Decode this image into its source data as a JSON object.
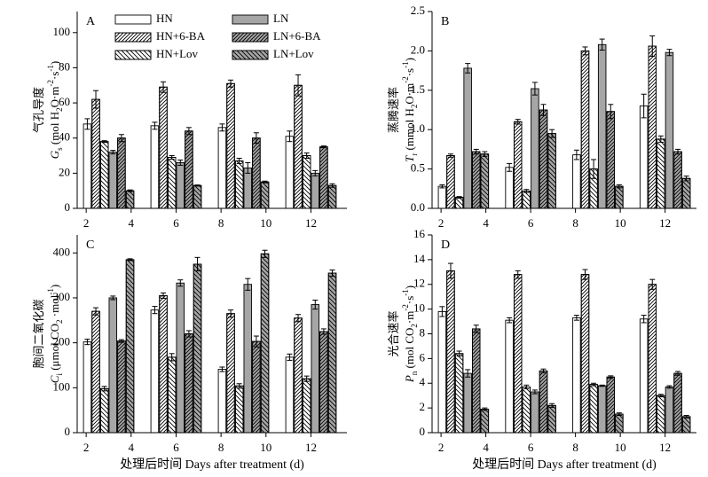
{
  "chart_data": [
    {
      "type": "bar",
      "panel": "A",
      "ylabel_cn": "气孔导度",
      "ylabel": [
        {
          "t": "G",
          "f": "italic"
        },
        {
          "t": "s",
          "f": "sub"
        },
        {
          "t": " (mol H",
          "f": "normal"
        },
        {
          "t": "2",
          "f": "sub"
        },
        {
          "t": "O·m",
          "f": "normal"
        },
        {
          "t": "-2",
          "f": "sup"
        },
        {
          "t": "·s",
          "f": "normal"
        },
        {
          "t": "-1",
          "f": "sup"
        },
        {
          "t": ")",
          "f": "normal"
        }
      ],
      "x": [
        3,
        6,
        9,
        12
      ],
      "xlim": [
        1.6,
        13.6
      ],
      "xticks": [
        2,
        4,
        6,
        8,
        10,
        12
      ],
      "ylim": [
        0,
        112
      ],
      "yticks": [
        0,
        20,
        40,
        60,
        80,
        100
      ],
      "series": [
        {
          "name": "HN",
          "color": "#ffffff",
          "pattern": "none",
          "values": [
            48,
            47,
            46,
            41
          ],
          "errors": [
            3,
            2,
            2,
            3
          ]
        },
        {
          "name": "HN+6-BA",
          "color": "#ffffff",
          "pattern": "slash",
          "values": [
            62,
            69,
            71,
            70
          ],
          "errors": [
            5,
            3,
            2,
            6
          ]
        },
        {
          "name": "HN+Lov",
          "color": "#ffffff",
          "pattern": "backslash",
          "values": [
            38,
            29,
            27,
            30
          ],
          "errors": [
            0.5,
            1,
            1.5,
            1.5
          ]
        },
        {
          "name": "LN",
          "color": "#a6a6a6",
          "pattern": "none",
          "values": [
            32,
            26,
            23,
            20
          ],
          "errors": [
            1,
            1.5,
            3,
            1.5
          ]
        },
        {
          "name": "LN+6-BA",
          "color": "#a6a6a6",
          "pattern": "slash",
          "values": [
            40,
            44,
            40,
            35
          ],
          "errors": [
            2,
            2,
            3,
            0.5
          ]
        },
        {
          "name": "LN+Lov",
          "color": "#a6a6a6",
          "pattern": "backslash",
          "values": [
            10,
            13,
            15,
            13
          ],
          "errors": [
            0.5,
            0.3,
            0.5,
            1
          ]
        }
      ]
    },
    {
      "type": "bar",
      "panel": "B",
      "ylabel_cn": "蒸腾速率",
      "ylabel": [
        {
          "t": "T",
          "f": "italic"
        },
        {
          "t": "r",
          "f": "sub"
        },
        {
          "t": " (mmol H",
          "f": "normal"
        },
        {
          "t": "2",
          "f": "sub"
        },
        {
          "t": "O·m",
          "f": "normal"
        },
        {
          "t": "-2",
          "f": "sup"
        },
        {
          "t": "·s",
          "f": "normal"
        },
        {
          "t": "-1",
          "f": "sup"
        },
        {
          "t": ")",
          "f": "normal"
        }
      ],
      "x": [
        3,
        6,
        9,
        12
      ],
      "xlim": [
        1.6,
        13.4
      ],
      "xticks": [
        2,
        4,
        6,
        8,
        10,
        12
      ],
      "ylim": [
        0,
        2.5
      ],
      "yticks": [
        {
          "value": 0,
          "label": "0.0"
        },
        0.5,
        {
          "value": 1,
          "label": "1.0"
        },
        1.5,
        {
          "value": 2,
          "label": "2.0"
        },
        2.5
      ],
      "series": [
        {
          "color": "#ffffff",
          "pattern": "none",
          "values": [
            0.28,
            0.52,
            0.68,
            1.3
          ],
          "errors": [
            0.02,
            0.05,
            0.06,
            0.15
          ]
        },
        {
          "color": "#ffffff",
          "pattern": "slash",
          "values": [
            0.67,
            1.1,
            2.0,
            2.06
          ],
          "errors": [
            0.02,
            0.03,
            0.05,
            0.13
          ]
        },
        {
          "color": "#ffffff",
          "pattern": "backslash",
          "values": [
            0.14,
            0.22,
            0.5,
            0.88
          ],
          "errors": [
            0.01,
            0.02,
            0.12,
            0.04
          ]
        },
        {
          "color": "#a6a6a6",
          "pattern": "none",
          "values": [
            1.78,
            1.52,
            2.08,
            1.98
          ],
          "errors": [
            0.06,
            0.08,
            0.07,
            0.04
          ]
        },
        {
          "color": "#a6a6a6",
          "pattern": "slash",
          "values": [
            0.72,
            1.25,
            1.23,
            0.72
          ],
          "errors": [
            0.03,
            0.07,
            0.09,
            0.03
          ]
        },
        {
          "color": "#a6a6a6",
          "pattern": "backslash",
          "values": [
            0.69,
            0.95,
            0.28,
            0.38
          ],
          "errors": [
            0.03,
            0.05,
            0.02,
            0.03
          ]
        }
      ]
    },
    {
      "type": "bar",
      "panel": "C",
      "ylabel_cn": "胞间二氧化碳",
      "ylabel": [
        {
          "t": "C",
          "f": "italic"
        },
        {
          "t": "i",
          "f": "sub"
        },
        {
          "t": " (μmol CO",
          "f": "normal"
        },
        {
          "t": "2",
          "f": "sub"
        },
        {
          "t": " ·mol",
          "f": "normal"
        },
        {
          "t": "-1",
          "f": "sup"
        },
        {
          "t": ")",
          "f": "normal"
        }
      ],
      "xlabel": "处理后时间 Days after treatment (d)",
      "x": [
        3,
        6,
        9,
        12
      ],
      "xlim": [
        1.6,
        13.6
      ],
      "xticks": [
        2,
        4,
        6,
        8,
        10,
        12
      ],
      "ylim": [
        0,
        440
      ],
      "yticks": [
        0,
        100,
        200,
        300,
        400
      ],
      "series": [
        {
          "color": "#ffffff",
          "pattern": "none",
          "values": [
            202,
            273,
            141,
            168
          ],
          "errors": [
            6,
            8,
            5,
            7
          ]
        },
        {
          "color": "#ffffff",
          "pattern": "slash",
          "values": [
            270,
            305,
            265,
            255
          ],
          "errors": [
            8,
            6,
            8,
            8
          ]
        },
        {
          "color": "#ffffff",
          "pattern": "backslash",
          "values": [
            98,
            168,
            104,
            120
          ],
          "errors": [
            5,
            8,
            5,
            6
          ]
        },
        {
          "color": "#a6a6a6",
          "pattern": "none",
          "values": [
            300,
            333,
            330,
            285
          ],
          "errors": [
            4,
            7,
            13,
            10
          ]
        },
        {
          "color": "#a6a6a6",
          "pattern": "slash",
          "values": [
            204,
            220,
            203,
            225
          ],
          "errors": [
            3,
            7,
            12,
            6
          ]
        },
        {
          "color": "#a6a6a6",
          "pattern": "backslash",
          "values": [
            385,
            375,
            398,
            355
          ],
          "errors": [
            2,
            15,
            8,
            7
          ]
        }
      ]
    },
    {
      "type": "bar",
      "panel": "D",
      "ylabel_cn": "光合速率",
      "ylabel": [
        {
          "t": "P",
          "f": "italic"
        },
        {
          "t": "n",
          "f": "sub"
        },
        {
          "t": " (mol CO",
          "f": "normal"
        },
        {
          "t": "2",
          "f": "sub"
        },
        {
          "t": "·m",
          "f": "normal"
        },
        {
          "t": "-2",
          "f": "sup"
        },
        {
          "t": "·s",
          "f": "normal"
        },
        {
          "t": "-1",
          "f": "sup"
        },
        {
          "t": ")",
          "f": "normal"
        }
      ],
      "xlabel": "处理后时间 Days after treatment (d)",
      "x": [
        3,
        6,
        9,
        12
      ],
      "xlim": [
        1.6,
        13.4
      ],
      "xticks": [
        2,
        4,
        6,
        8,
        10,
        12
      ],
      "ylim": [
        0,
        16
      ],
      "yticks": [
        0,
        2,
        4,
        6,
        8,
        10,
        12,
        14,
        16
      ],
      "series": [
        {
          "color": "#ffffff",
          "pattern": "none",
          "values": [
            9.8,
            9.1,
            9.3,
            9.2
          ],
          "errors": [
            0.4,
            0.2,
            0.2,
            0.3
          ]
        },
        {
          "color": "#ffffff",
          "pattern": "slash",
          "values": [
            13.1,
            12.8,
            12.8,
            12.0
          ],
          "errors": [
            0.6,
            0.3,
            0.4,
            0.4
          ]
        },
        {
          "color": "#ffffff",
          "pattern": "backslash",
          "values": [
            6.4,
            3.7,
            3.9,
            3.0
          ],
          "errors": [
            0.2,
            0.15,
            0.1,
            0.1
          ]
        },
        {
          "color": "#a6a6a6",
          "pattern": "none",
          "values": [
            4.8,
            3.3,
            3.8,
            3.7
          ],
          "errors": [
            0.3,
            0.15,
            0.05,
            0.1
          ]
        },
        {
          "color": "#a6a6a6",
          "pattern": "slash",
          "values": [
            8.4,
            5.0,
            4.5,
            4.8
          ],
          "errors": [
            0.3,
            0.15,
            0.1,
            0.15
          ]
        },
        {
          "color": "#a6a6a6",
          "pattern": "backslash",
          "values": [
            1.9,
            2.2,
            1.5,
            1.3
          ],
          "errors": [
            0.1,
            0.15,
            0.1,
            0.1
          ]
        }
      ]
    }
  ]
}
